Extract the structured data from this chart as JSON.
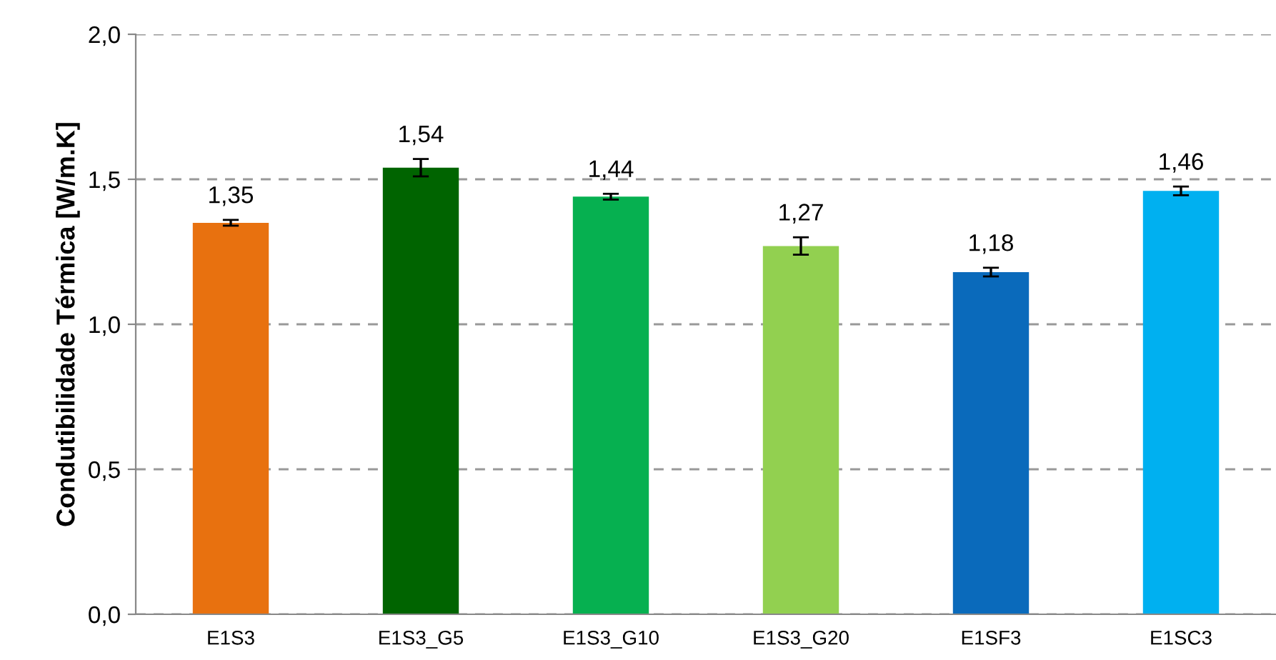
{
  "chart_data": {
    "type": "bar",
    "ylabel": "Condutibilidade Térmica [W/m.K]",
    "categories": [
      "E1S3",
      "E1S3_G5",
      "E1S3_G10",
      "E1S3_G20",
      "E1SF3",
      "E1SC3"
    ],
    "values": [
      1.35,
      1.54,
      1.44,
      1.27,
      1.18,
      1.46
    ],
    "colors": [
      "#e8710f",
      "#006400",
      "#06b050",
      "#92d050",
      "#0a6abb",
      "#00b0f0"
    ],
    "errors": [
      0.01,
      0.03,
      0.01,
      0.03,
      0.015,
      0.015
    ],
    "value_labels": [
      "1,35",
      "1,54",
      "1,44",
      "1,27",
      "1,18",
      "1,46"
    ],
    "ylim": [
      0,
      2
    ],
    "yticks": [
      {
        "value": 0,
        "label": "0,0"
      },
      {
        "value": 0.5,
        "label": "0,5"
      },
      {
        "value": 1,
        "label": "1,0"
      },
      {
        "value": 1.5,
        "label": "1,5"
      },
      {
        "value": 2,
        "label": "2,0"
      }
    ],
    "grid": "y",
    "legend": false
  }
}
